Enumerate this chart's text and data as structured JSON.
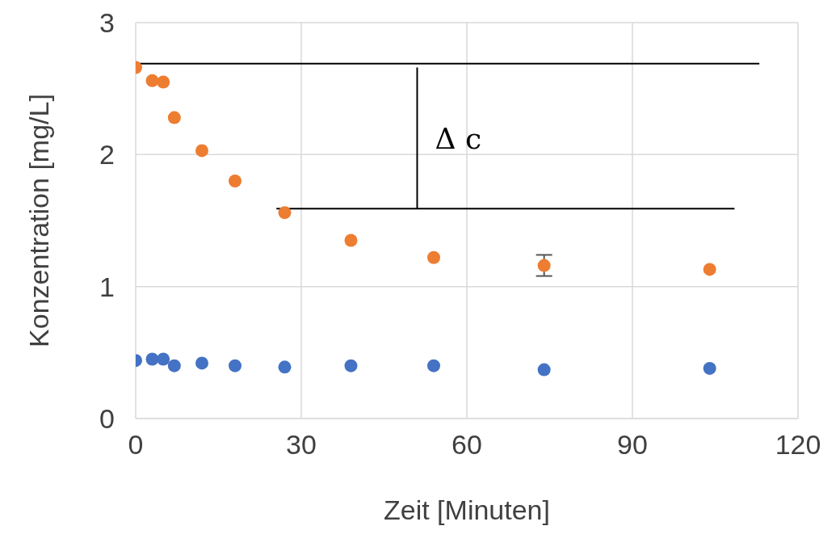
{
  "chart_data": {
    "type": "scatter",
    "xlabel": "Zeit [Minuten]",
    "ylabel": "Konzentration [mg/L]",
    "x": [
      0,
      3,
      5,
      7,
      12,
      18,
      27,
      39,
      54,
      74,
      104
    ],
    "xlim": [
      0,
      120
    ],
    "xticks": [
      0,
      30,
      60,
      90,
      120
    ],
    "ylim": [
      0,
      3
    ],
    "yticks": [
      0,
      1,
      2,
      3
    ],
    "grid": true,
    "legend": false,
    "marker": "circle",
    "series": [
      {
        "color": "#ed7d31",
        "values": [
          2.66,
          2.56,
          2.55,
          2.28,
          2.03,
          1.8,
          1.56,
          1.35,
          1.22,
          1.16,
          1.13
        ],
        "errors": [
          null,
          null,
          null,
          null,
          null,
          null,
          null,
          null,
          null,
          0.08,
          null
        ]
      },
      {
        "color": "#4472c4",
        "values": [
          0.44,
          0.45,
          0.45,
          0.4,
          0.42,
          0.4,
          0.39,
          0.4,
          0.4,
          0.37,
          0.38
        ]
      },
      {
        "type": "line",
        "color": "#000000",
        "x": [
          0,
          113
        ],
        "values": [
          2.69,
          2.69
        ],
        "marker": "none",
        "line_style": "solid"
      },
      {
        "type": "line",
        "color": "#000000",
        "x": [
          25.5,
          108.5
        ],
        "values": [
          1.59,
          1.59
        ],
        "marker": "none",
        "line_style": "solid"
      },
      {
        "type": "line",
        "color": "#000000",
        "x": [
          51,
          51
        ],
        "values": [
          2.66,
          1.59
        ],
        "marker": "none",
        "line_style": "solid"
      }
    ],
    "annotations": [
      "Δ c"
    ]
  }
}
